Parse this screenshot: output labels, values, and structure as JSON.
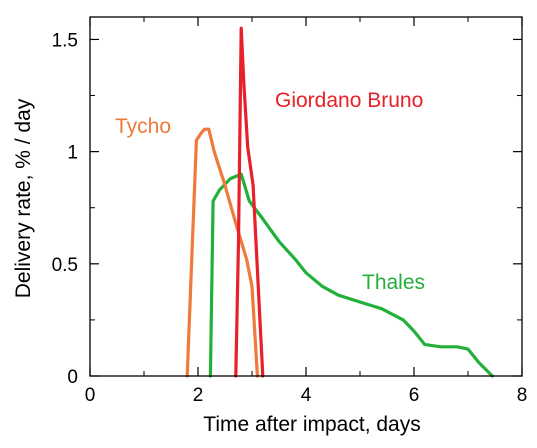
{
  "chart_data": {
    "type": "line",
    "xlabel": "Time after impact, days",
    "ylabel": "Delivery rate, % / day",
    "xlim": [
      0,
      8
    ],
    "ylim": [
      0,
      1.6
    ],
    "x_ticks": [
      0,
      2,
      4,
      6,
      8
    ],
    "y_ticks": [
      0,
      0.5,
      1,
      1.5
    ],
    "y_tick_labels": [
      "0",
      "0.5",
      "1",
      "1.5"
    ],
    "grid": false,
    "legend": "none (series labelled directly on plot)",
    "series": [
      {
        "name": "Tycho",
        "color": "#f07a3a",
        "points": [
          [
            1.8,
            0.0
          ],
          [
            1.97,
            1.05
          ],
          [
            2.05,
            1.08
          ],
          [
            2.12,
            1.1
          ],
          [
            2.2,
            1.1
          ],
          [
            2.3,
            1.0
          ],
          [
            2.5,
            0.85
          ],
          [
            2.7,
            0.68
          ],
          [
            2.9,
            0.52
          ],
          [
            3.0,
            0.4
          ],
          [
            3.1,
            0.0
          ]
        ]
      },
      {
        "name": "Giordano Bruno",
        "color": "#e8202a",
        "points": [
          [
            2.7,
            0.0
          ],
          [
            2.75,
            0.6
          ],
          [
            2.8,
            1.55
          ],
          [
            2.85,
            1.3
          ],
          [
            2.92,
            1.02
          ],
          [
            3.02,
            0.85
          ],
          [
            3.2,
            0.0
          ]
        ]
      },
      {
        "name": "Thales",
        "color": "#22b03a",
        "points": [
          [
            2.23,
            0.0
          ],
          [
            2.28,
            0.78
          ],
          [
            2.4,
            0.83
          ],
          [
            2.6,
            0.88
          ],
          [
            2.8,
            0.9
          ],
          [
            2.95,
            0.78
          ],
          [
            3.2,
            0.7
          ],
          [
            3.5,
            0.6
          ],
          [
            3.8,
            0.52
          ],
          [
            4.0,
            0.46
          ],
          [
            4.3,
            0.4
          ],
          [
            4.6,
            0.36
          ],
          [
            5.0,
            0.33
          ],
          [
            5.4,
            0.3
          ],
          [
            5.8,
            0.25
          ],
          [
            6.0,
            0.2
          ],
          [
            6.2,
            0.14
          ],
          [
            6.5,
            0.13
          ],
          [
            6.8,
            0.13
          ],
          [
            7.0,
            0.12
          ],
          [
            7.2,
            0.06
          ],
          [
            7.45,
            0.0
          ]
        ]
      }
    ],
    "annotations": [
      {
        "text": "Tycho",
        "series": "Tycho"
      },
      {
        "text": "Giordano Bruno",
        "series": "Giordano Bruno"
      },
      {
        "text": "Thales",
        "series": "Thales"
      }
    ]
  }
}
